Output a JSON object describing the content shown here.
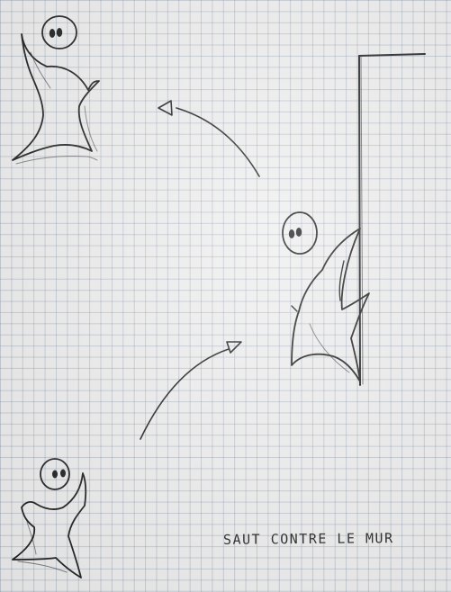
{
  "caption": "SAUT CONTRE LE MUR",
  "colors": {
    "paper": "#eeeeee",
    "grid": "#8793a6",
    "ink": "#1f1f1f"
  },
  "figures": [
    "stick-figure-jumping",
    "stick-figure-on-wall",
    "stick-figure-standing"
  ],
  "arrows": [
    "arrow-lower",
    "arrow-upper"
  ]
}
